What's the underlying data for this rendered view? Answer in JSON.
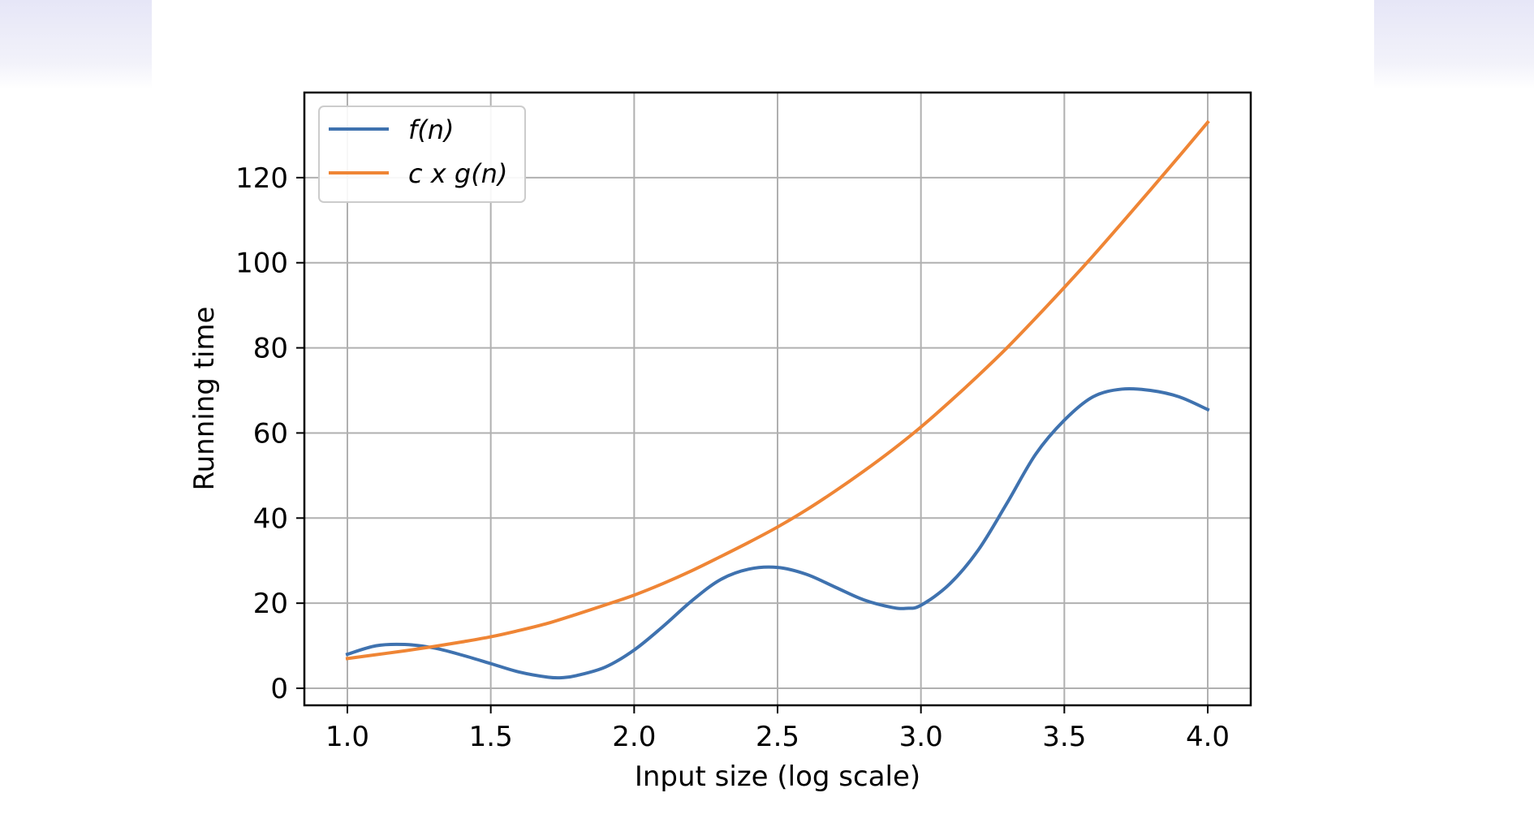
{
  "colors": {
    "f_series": "#3f72af",
    "cg_series": "#ef8535",
    "grid": "#b0b0b0",
    "band": "#e6e6f7"
  },
  "chart_data": {
    "type": "line",
    "xlabel": "Input size (log scale)",
    "ylabel": "Running time",
    "xlim": [
      0.85,
      4.15
    ],
    "ylim": [
      -4,
      140
    ],
    "xticks": [
      1.0,
      1.5,
      2.0,
      2.5,
      3.0,
      3.5,
      4.0
    ],
    "xtick_labels": [
      "1.0",
      "1.5",
      "2.0",
      "2.5",
      "3.0",
      "3.5",
      "4.0"
    ],
    "yticks": [
      0,
      20,
      40,
      60,
      80,
      100,
      120
    ],
    "ytick_labels": [
      "0",
      "20",
      "40",
      "60",
      "80",
      "100",
      "120"
    ],
    "grid": true,
    "legend_position": "top-left",
    "series": [
      {
        "name": "f(n)",
        "color": "#3f72af",
        "x": [
          1.0,
          1.1,
          1.2,
          1.3,
          1.4,
          1.5,
          1.6,
          1.7,
          1.75,
          1.8,
          1.9,
          2.0,
          2.1,
          2.2,
          2.3,
          2.4,
          2.5,
          2.6,
          2.7,
          2.8,
          2.9,
          2.95,
          3.0,
          3.1,
          3.2,
          3.3,
          3.4,
          3.5,
          3.6,
          3.7,
          3.8,
          3.9,
          4.0
        ],
        "y": [
          8,
          10,
          10.3,
          9.5,
          7.8,
          5.8,
          3.8,
          2.6,
          2.5,
          3,
          5,
          9,
          14.5,
          20.5,
          25.5,
          28,
          28.4,
          26.8,
          23.8,
          20.8,
          19,
          18.8,
          19.5,
          24.5,
          32.5,
          43.5,
          55,
          63,
          68.5,
          70.3,
          70,
          68.5,
          65.5
        ]
      },
      {
        "name": "c x g(n)",
        "color": "#ef8535",
        "x": [
          1.0,
          1.1,
          1.2,
          1.3,
          1.4,
          1.5,
          1.6,
          1.7,
          1.8,
          1.9,
          2.0,
          2.1,
          2.2,
          2.3,
          2.4,
          2.5,
          2.6,
          2.7,
          2.8,
          2.9,
          3.0,
          3.1,
          3.2,
          3.3,
          3.4,
          3.5,
          3.6,
          3.7,
          3.8,
          3.9,
          4.0
        ],
        "y": [
          7,
          7.9,
          8.8,
          9.8,
          10.9,
          12.1,
          13.6,
          15.3,
          17.4,
          19.6,
          21.9,
          24.6,
          27.6,
          30.9,
          34.3,
          37.9,
          41.9,
          46.3,
          51,
          56,
          61.4,
          67.3,
          73.5,
          80,
          87,
          94.2,
          101.6,
          109.3,
          117.1,
          125,
          133
        ]
      }
    ]
  }
}
